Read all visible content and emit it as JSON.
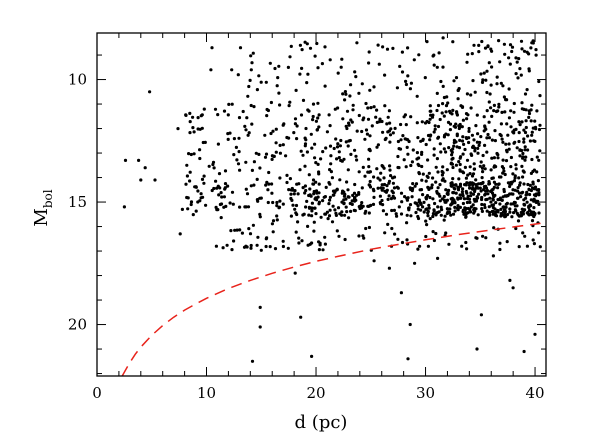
{
  "chart_data": {
    "type": "scatter",
    "title": "",
    "xlabel": "d (pc)",
    "ylabel_main": "M",
    "ylabel_sub": "bol",
    "xlim": [
      0,
      41
    ],
    "ylim": [
      22.1,
      8.1
    ],
    "y_inverted": true,
    "xticks_major": [
      0,
      10,
      20,
      30,
      40
    ],
    "xticks_minor_step": 2,
    "yticks_major": [
      10,
      15,
      20
    ],
    "yticks_minor_step": 1,
    "grid": false,
    "legend": "none",
    "colors": {
      "points": "#000000",
      "limit_curve": "#e8231b",
      "axes": "#000000"
    },
    "series": [
      {
        "kind": "points",
        "marker": "dot",
        "color": "#000000",
        "manual_points": [
          [
            2.5,
            15.2
          ],
          [
            2.6,
            13.3
          ],
          [
            3.8,
            13.3
          ],
          [
            4.0,
            14.1
          ],
          [
            4.4,
            13.6
          ],
          [
            4.8,
            10.5
          ],
          [
            5.3,
            14.1
          ],
          [
            7.4,
            12.0
          ],
          [
            7.6,
            16.3
          ],
          [
            7.8,
            15.3
          ],
          [
            8.2,
            13.5
          ],
          [
            8.6,
            15.1
          ],
          [
            9.2,
            15.0
          ],
          [
            10.4,
            9.6
          ],
          [
            10.5,
            8.7
          ],
          [
            10.9,
            16.8
          ],
          [
            12.3,
            9.6
          ],
          [
            12.9,
            9.8
          ],
          [
            13.1,
            8.7
          ],
          [
            13.6,
            16.8
          ],
          [
            14.2,
            21.5
          ],
          [
            14.9,
            19.3
          ],
          [
            14.9,
            20.1
          ],
          [
            16.3,
            16.9
          ],
          [
            17.0,
            16.6
          ],
          [
            18.1,
            17.9
          ],
          [
            18.6,
            19.7
          ],
          [
            19.6,
            21.3
          ],
          [
            22.1,
            16.4
          ],
          [
            25.3,
            17.4
          ],
          [
            26.7,
            17.7
          ],
          [
            27.8,
            18.7
          ],
          [
            28.4,
            21.4
          ],
          [
            28.6,
            20.0
          ],
          [
            29.0,
            17.5
          ],
          [
            31.1,
            17.3
          ],
          [
            33.3,
            16.8
          ],
          [
            34.7,
            21.0
          ],
          [
            35.1,
            19.6
          ],
          [
            36.2,
            17.2
          ],
          [
            37.7,
            18.2
          ],
          [
            38.0,
            18.5
          ],
          [
            39.0,
            21.1
          ],
          [
            39.3,
            16.8
          ],
          [
            40.0,
            20.4
          ],
          [
            39.7,
            8.5
          ],
          [
            40.1,
            9.0
          ],
          [
            31.6,
            8.3
          ]
        ],
        "clusters": [
          {
            "x": [
              8,
              19
            ],
            "y": [
              14.2,
              15.6
            ],
            "n": 90
          },
          {
            "x": [
              19,
              30
            ],
            "y": [
              14.2,
              15.6
            ],
            "n": 190
          },
          {
            "x": [
              30,
              40.5
            ],
            "y": [
              14.2,
              15.6
            ],
            "n": 360
          },
          {
            "x": [
              8,
              19
            ],
            "y": [
              11.0,
              14.2
            ],
            "n": 110
          },
          {
            "x": [
              19,
              30
            ],
            "y": [
              11.0,
              14.2
            ],
            "n": 180
          },
          {
            "x": [
              30,
              40.5
            ],
            "y": [
              11.0,
              14.2
            ],
            "n": 300
          },
          {
            "x": [
              13,
              30
            ],
            "y": [
              8.4,
              11.0
            ],
            "n": 80
          },
          {
            "x": [
              30,
              40.5
            ],
            "y": [
              8.4,
              11.0
            ],
            "n": 90
          },
          {
            "x": [
              11,
              40.5
            ],
            "y": [
              15.6,
              17.0
            ],
            "n": 110
          }
        ]
      },
      {
        "kind": "limit_curve",
        "style": "dashed",
        "color": "#e8231b",
        "x": [
          2.3,
          2.6,
          3,
          3.5,
          4,
          5,
          6,
          7,
          8,
          9,
          10,
          12,
          14,
          16,
          18,
          20,
          22,
          25,
          28,
          30,
          33,
          36,
          38,
          40.5
        ],
        "y": [
          22.1,
          21.86,
          21.55,
          21.21,
          20.92,
          20.44,
          20.04,
          19.7,
          19.41,
          19.16,
          18.93,
          18.53,
          18.2,
          17.91,
          17.65,
          17.42,
          17.22,
          16.93,
          16.69,
          16.54,
          16.33,
          16.14,
          16.02,
          15.87
        ]
      }
    ]
  }
}
